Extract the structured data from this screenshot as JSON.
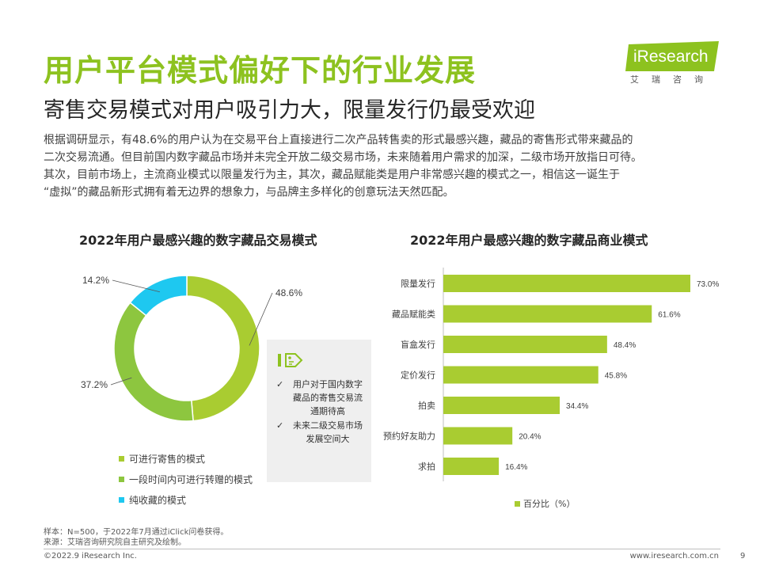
{
  "header": {
    "title": "用户平台模式偏好下的行业发展",
    "subtitle": "寄售交易模式对用户吸引力大，限量发行仍最受欢迎",
    "logo_word": "iResearch",
    "logo_sub": "艾瑞咨询"
  },
  "body_lines": [
    "根据调研显示，有48.6%的用户认为在交易平台上直接进行二次产品转售卖的形式最感兴趣，藏品的寄售形式带来藏品的",
    "二次交易流通。但目前国内数字藏品市场并未完全开放二级交易市场，未来随着用户需求的加深，二级市场开放指日可待。",
    "其次，目前市场上，主流商业模式以限量发行为主，其次，藏品赋能类是用户非常感兴趣的模式之一，相信这一诞生于",
    "“虚拟”的藏品新形式拥有着无边界的想象力，与品牌主多样化的创意玩法天然匹配。"
  ],
  "callout": {
    "items": [
      "用户对于国内数字藏品的寄售交易流通期待高",
      "未来二级交易市场发展空间大"
    ]
  },
  "footer": {
    "note1": "样本：N=500，于2022年7月通过iClick问卷获得。",
    "note2": "来源：艾瑞咨询研究院自主研究及绘制。",
    "copyright": "©2022.9 iResearch Inc.",
    "website": "www.iresearch.com.cn",
    "page": "9"
  },
  "colors": {
    "brand": "#8dc21f",
    "pie_green_light": "#a9cc31",
    "pie_green_dark": "#8dc63f",
    "pie_blue": "#1ec8f0",
    "bar": "#a9cc31"
  },
  "chart_data": [
    {
      "type": "pie",
      "title": "2022年用户最感兴趣的数字藏品交易模式",
      "categories": [
        "可进行寄售的模式",
        "一段时间内可进行转赠的模式",
        "纯收藏的模式"
      ],
      "values": [
        48.6,
        37.2,
        14.2
      ],
      "labels": [
        "48.6%",
        "37.2%",
        "14.2%"
      ]
    },
    {
      "type": "bar",
      "title": "2022年用户最感兴趣的数字藏品商业模式",
      "categories": [
        "限量发行",
        "藏品赋能类",
        "盲盒发行",
        "定价发行",
        "拍卖",
        "预约好友助力",
        "求拍"
      ],
      "values": [
        73.0,
        61.6,
        48.4,
        45.8,
        34.4,
        20.4,
        16.4
      ],
      "labels": [
        "73.0%",
        "61.6%",
        "48.4%",
        "45.8%",
        "34.4%",
        "20.4%",
        "16.4%"
      ],
      "legend": "百分比（%）",
      "xlim": [
        0,
        80
      ]
    }
  ]
}
